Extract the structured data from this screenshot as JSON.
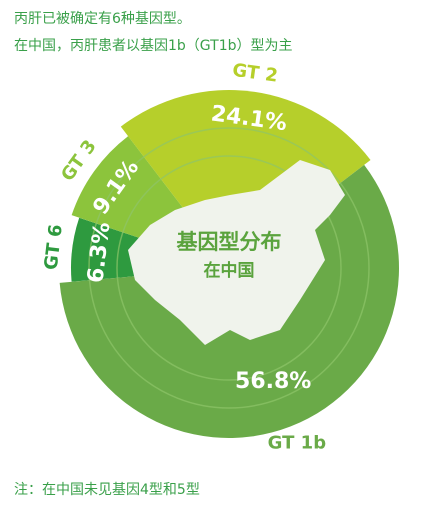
{
  "chart_data": {
    "type": "pie",
    "title": "丙肝已被确定有6种基因型。",
    "subtitle": "在中国，丙肝患者以基因1b（GT1b）型为主",
    "center_label": [
      "基因型分布",
      "在中国"
    ],
    "note": "注：在中国未见基因4型和5型",
    "categories": [
      "GT 6",
      "GT 3",
      "GT 2",
      "GT 1b"
    ],
    "values": [
      6.3,
      9.1,
      24.1,
      56.8
    ],
    "value_labels": [
      "6.3%",
      "9.1%",
      "24.1%",
      "56.8%"
    ],
    "colors": [
      "#2e9a3f",
      "#8cc43c",
      "#b6cf2b",
      "#6aaa48"
    ]
  }
}
